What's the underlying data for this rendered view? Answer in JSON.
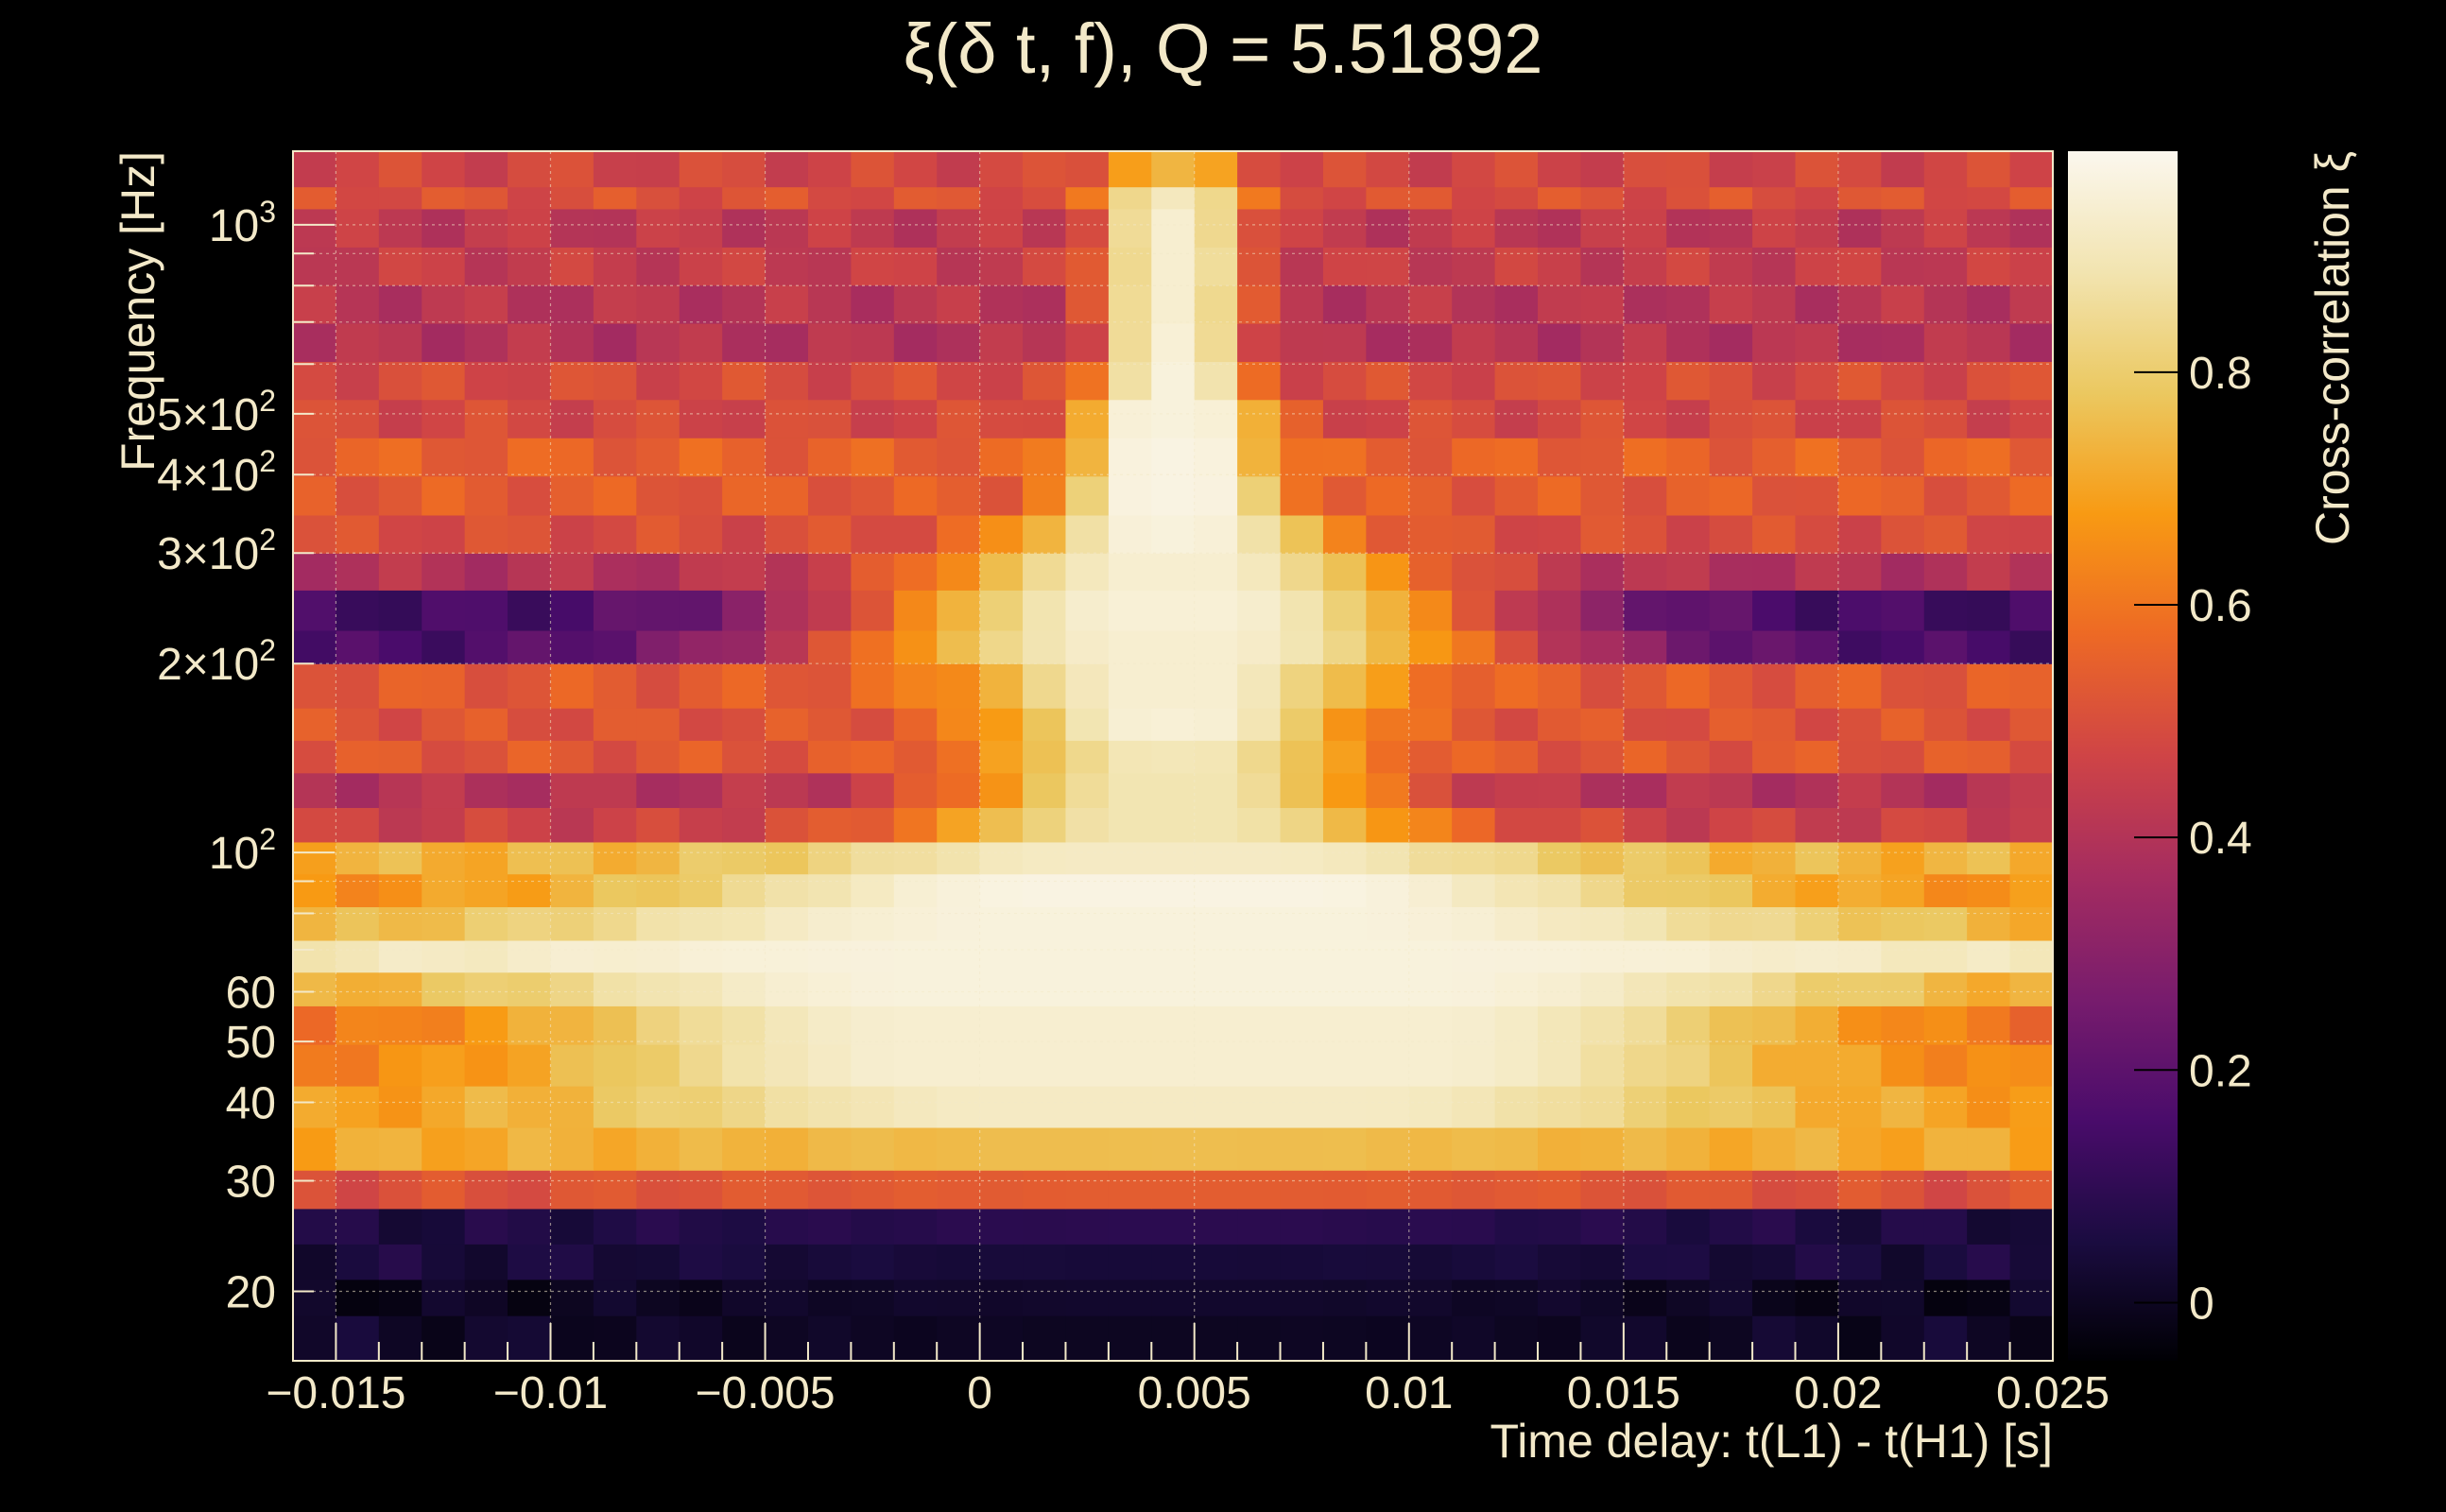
{
  "chart_data": {
    "type": "heatmap",
    "title": "ξ(δ t, f), Q = 5.51892",
    "xlabel": "Time delay: t(L1) - t(H1) [s]",
    "ylabel": "Frequency [Hz]",
    "colorbar_label": "Cross-correlation ξ",
    "x_range": [
      -0.016,
      0.025
    ],
    "y_range": [
      15.5,
      1310
    ],
    "y_scale": "log",
    "z_range": [
      -0.05,
      0.99
    ],
    "colormap": "inferno",
    "grid": true,
    "x_ticks": [
      {
        "value": -0.015,
        "label": "−0.015"
      },
      {
        "value": -0.01,
        "label": "−0.01"
      },
      {
        "value": -0.005,
        "label": "−0.005"
      },
      {
        "value": 0,
        "label": "0"
      },
      {
        "value": 0.005,
        "label": "0.005"
      },
      {
        "value": 0.01,
        "label": "0.01"
      },
      {
        "value": 0.015,
        "label": "0.015"
      },
      {
        "value": 0.02,
        "label": "0.02"
      },
      {
        "value": 0.025,
        "label": "0.025"
      }
    ],
    "y_ticks": [
      {
        "value": 20,
        "label": "20"
      },
      {
        "value": 30,
        "label": "30"
      },
      {
        "value": 40,
        "label": "40"
      },
      {
        "value": 50,
        "label": "50"
      },
      {
        "value": 60,
        "label": "60"
      },
      {
        "value": 100,
        "base": "10",
        "exp": "2"
      },
      {
        "value": 200,
        "base": "2×10",
        "exp": "2"
      },
      {
        "value": 300,
        "base": "3×10",
        "exp": "2"
      },
      {
        "value": 400,
        "base": "4×10",
        "exp": "2"
      },
      {
        "value": 500,
        "base": "5×10",
        "exp": "2"
      },
      {
        "value": 1000,
        "base": "10",
        "exp": "3"
      }
    ],
    "z_ticks": [
      {
        "value": 0,
        "label": "0"
      },
      {
        "value": 0.2,
        "label": "0.2"
      },
      {
        "value": 0.4,
        "label": "0.4"
      },
      {
        "value": 0.6,
        "label": "0.6"
      },
      {
        "value": 0.8,
        "label": "0.8"
      }
    ],
    "x_bins": {
      "start": -0.016,
      "width": 0.001,
      "count": 41
    },
    "rows": [
      {
        "f_low": 15.5,
        "f_high": 18.3,
        "base": -0.02,
        "amp": 0.02,
        "width": 0.01,
        "plateau": 0.0
      },
      {
        "f_low": 18.3,
        "f_high": 20.9,
        "base": 0.0,
        "amp": 0.02,
        "width": 0.01,
        "plateau": 0.0
      },
      {
        "f_low": 20.9,
        "f_high": 23.8,
        "base": 0.02,
        "amp": 0.02,
        "width": 0.01,
        "plateau": 0.0
      },
      {
        "f_low": 23.8,
        "f_high": 27.1,
        "base": 0.07,
        "amp": 0.02,
        "width": 0.01,
        "plateau": 0.0
      },
      {
        "f_low": 27.1,
        "f_high": 31.2,
        "base": 0.48,
        "amp": 0.06,
        "width": 0.01,
        "plateau": 0.0
      },
      {
        "f_low": 31.2,
        "f_high": 36.5,
        "base": 0.66,
        "amp": 0.1,
        "width": 0.01,
        "plateau": 0.0
      },
      {
        "f_low": 36.5,
        "f_high": 42.5,
        "base": 0.68,
        "amp": 0.24,
        "width": 0.007,
        "plateau": 0.004
      },
      {
        "f_low": 42.5,
        "f_high": 49.5,
        "base": 0.58,
        "amp": 0.36,
        "width": 0.006,
        "plateau": 0.006
      },
      {
        "f_low": 49.5,
        "f_high": 57.0,
        "base": 0.56,
        "amp": 0.38,
        "width": 0.007,
        "plateau": 0.006
      },
      {
        "f_low": 57.0,
        "f_high": 64.5,
        "base": 0.64,
        "amp": 0.32,
        "width": 0.008,
        "plateau": 0.006
      },
      {
        "f_low": 64.5,
        "f_high": 72.5,
        "base": 0.8,
        "amp": 0.16,
        "width": 0.012,
        "plateau": 0.006
      },
      {
        "f_low": 72.5,
        "f_high": 82.0,
        "base": 0.68,
        "amp": 0.28,
        "width": 0.009,
        "plateau": 0.004
      },
      {
        "f_low": 82.0,
        "f_high": 92.5,
        "base": 0.66,
        "amp": 0.31,
        "width": 0.007,
        "plateau": 0.003
      },
      {
        "f_low": 92.5,
        "f_high": 104.0,
        "base": 0.7,
        "amp": 0.22,
        "width": 0.005,
        "plateau": 0.002
      },
      {
        "f_low": 104.0,
        "f_high": 118.0,
        "base": 0.45,
        "amp": 0.44,
        "width": 0.0035,
        "plateau": 0.001
      },
      {
        "f_low": 118.0,
        "f_high": 134.0,
        "base": 0.42,
        "amp": 0.47,
        "width": 0.003,
        "plateau": 0.0008
      },
      {
        "f_low": 134.0,
        "f_high": 151.0,
        "base": 0.5,
        "amp": 0.4,
        "width": 0.0025,
        "plateau": 0.0006
      },
      {
        "f_low": 151.0,
        "f_high": 170.0,
        "base": 0.55,
        "amp": 0.4,
        "width": 0.0025,
        "plateau": 0.0006
      },
      {
        "f_low": 170.0,
        "f_high": 200.0,
        "base": 0.52,
        "amp": 0.42,
        "width": 0.0028,
        "plateau": 0.0008
      },
      {
        "f_low": 200.0,
        "f_high": 226.0,
        "base": 0.12,
        "amp": 0.82,
        "width": 0.0055,
        "plateau": 0.001
      },
      {
        "f_low": 226.0,
        "f_high": 262.0,
        "base": 0.15,
        "amp": 0.8,
        "width": 0.005,
        "plateau": 0.001
      },
      {
        "f_low": 262.0,
        "f_high": 300.0,
        "base": 0.38,
        "amp": 0.56,
        "width": 0.0035,
        "plateau": 0.0008
      },
      {
        "f_low": 300.0,
        "f_high": 345.0,
        "base": 0.52,
        "amp": 0.44,
        "width": 0.0022,
        "plateau": 0.0006
      },
      {
        "f_low": 345.0,
        "f_high": 398.0,
        "base": 0.5,
        "amp": 0.47,
        "width": 0.0012,
        "plateau": 0.0008
      },
      {
        "f_low": 398.0,
        "f_high": 458.0,
        "base": 0.55,
        "amp": 0.42,
        "width": 0.001,
        "plateau": 0.0008
      },
      {
        "f_low": 458.0,
        "f_high": 527.0,
        "base": 0.5,
        "amp": 0.46,
        "width": 0.001,
        "plateau": 0.0008
      },
      {
        "f_low": 527.0,
        "f_high": 606.0,
        "base": 0.46,
        "amp": 0.5,
        "width": 0.0008,
        "plateau": 0.0005
      },
      {
        "f_low": 606.0,
        "f_high": 697.0,
        "base": 0.43,
        "amp": 0.52,
        "width": 0.0008,
        "plateau": 0.0005
      },
      {
        "f_low": 697.0,
        "f_high": 802.0,
        "base": 0.4,
        "amp": 0.54,
        "width": 0.0008,
        "plateau": 0.0005
      },
      {
        "f_low": 802.0,
        "f_high": 922.0,
        "base": 0.42,
        "amp": 0.52,
        "width": 0.0008,
        "plateau": 0.0005
      },
      {
        "f_low": 922.0,
        "f_high": 1061.0,
        "base": 0.44,
        "amp": 0.5,
        "width": 0.0008,
        "plateau": 0.0005
      },
      {
        "f_low": 1061.0,
        "f_high": 1150.0,
        "base": 0.47,
        "amp": 0.44,
        "width": 0.0008,
        "plateau": 0.0005
      },
      {
        "f_low": 1150.0,
        "f_high": 1310.0,
        "base": 0.5,
        "amp": 0.24,
        "width": 0.0008,
        "plateau": 0.0005
      }
    ],
    "row_center_t": 0.0045,
    "row_texture": [
      0.06,
      -0.02,
      0.05,
      -0.04,
      0.03,
      0.07,
      -0.03,
      0.04,
      -0.05,
      0.02,
      0.06,
      -0.01,
      -0.04,
      0.05,
      0.01,
      -0.03,
      0.04,
      -0.06,
      0.02,
      0.05,
      -0.02,
      0.03,
      -0.04,
      0.06,
      0.0,
      -0.03,
      0.05,
      -0.05,
      0.02,
      0.04,
      -0.02,
      0.06,
      -0.04
    ]
  }
}
